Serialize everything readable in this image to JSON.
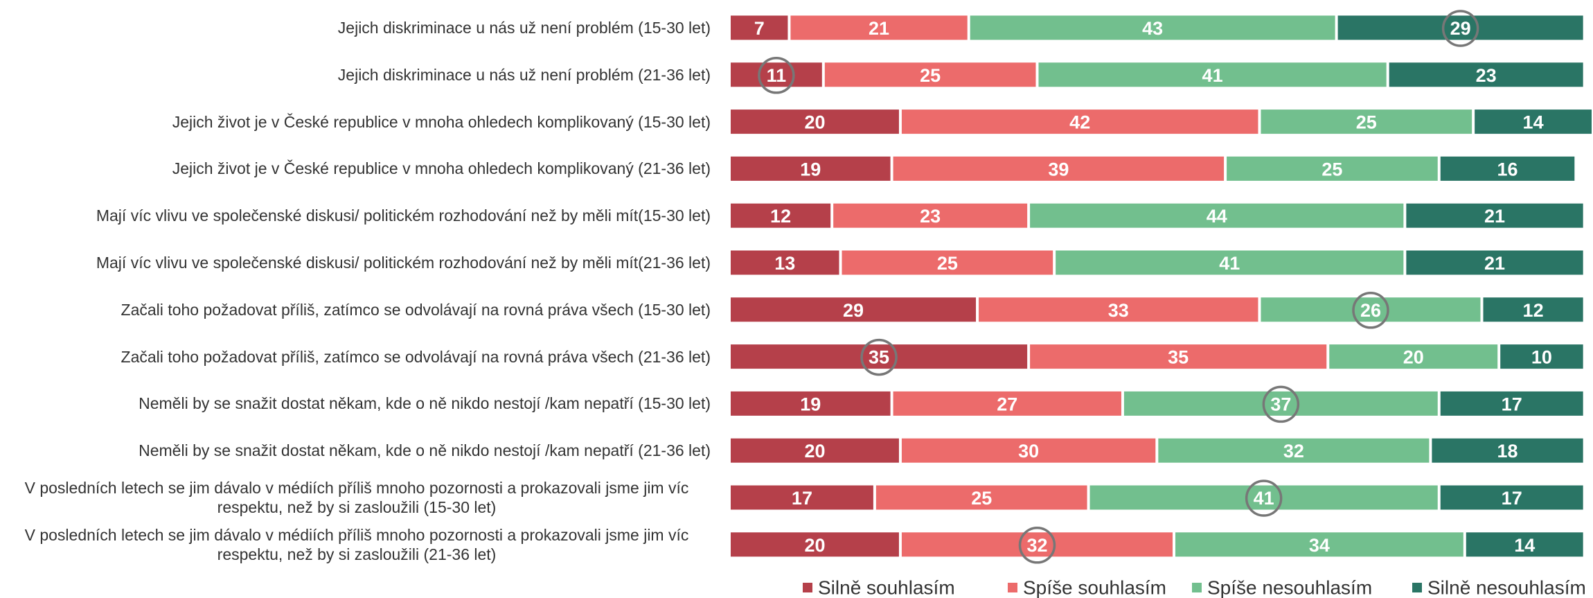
{
  "chart_data": {
    "type": "stacked_bar_horizontal",
    "categories": [
      "Jejich diskriminace u nás už není problém (15-30 let)",
      "Jejich diskriminace u nás už není problém (21-36 let)",
      "Jejich život je v České republice v mnoha ohledech komplikovaný  (15-30 let)",
      "Jejich život je v České republice v mnoha ohledech komplikovaný  (21-36 let)",
      "Mají víc vlivu ve společenské diskusi/ politickém rozhodování než by měli mít(15-30 let)",
      "Mají víc vlivu ve společenské diskusi/ politickém rozhodování než by měli mít(21-36 let)",
      "Začali toho požadovat příliš, zatímco se odvolávají na rovná práva všech (15-30 let)",
      "Začali toho požadovat příliš, zatímco se odvolávají na rovná práva všech (21-36 let)",
      "Neměli by se snažit dostat někam, kde o ně nikdo nestojí /kam nepatří (15-30 let)",
      "Neměli by se snažit dostat někam, kde o ně nikdo nestojí /kam nepatří (21-36 let)",
      "V posledních letech se jim dávalo v médiích příliš mnoho pozornosti a prokazovali jsme jim víc respektu, než by si zasloužili (15-30 let)",
      "V posledních letech se jim dávalo v médiích příliš mnoho pozornosti a prokazovali jsme jim víc respektu, než by si zasloužili (21-36 let)"
    ],
    "series": [
      {
        "name": "Silně souhlasím",
        "color": "#b5404a",
        "values": [
          7,
          11,
          20,
          19,
          12,
          13,
          29,
          35,
          19,
          20,
          17,
          20
        ]
      },
      {
        "name": "Spíše souhlasím",
        "color": "#ec6b6b",
        "values": [
          21,
          25,
          42,
          39,
          23,
          25,
          33,
          35,
          27,
          30,
          25,
          32
        ]
      },
      {
        "name": "Spíše nesouhlasím",
        "color": "#72bf8e",
        "values": [
          43,
          41,
          25,
          25,
          44,
          41,
          26,
          20,
          37,
          32,
          41,
          34
        ]
      },
      {
        "name": "Silně nesouhlasím",
        "color": "#2a7565",
        "values": [
          29,
          23,
          14,
          16,
          21,
          21,
          12,
          10,
          17,
          18,
          17,
          14
        ]
      }
    ],
    "highlights": [
      3,
      0,
      null,
      null,
      null,
      null,
      2,
      0,
      2,
      null,
      2,
      1
    ],
    "xlim": [
      0,
      101
    ],
    "legend": "bottom-right"
  }
}
